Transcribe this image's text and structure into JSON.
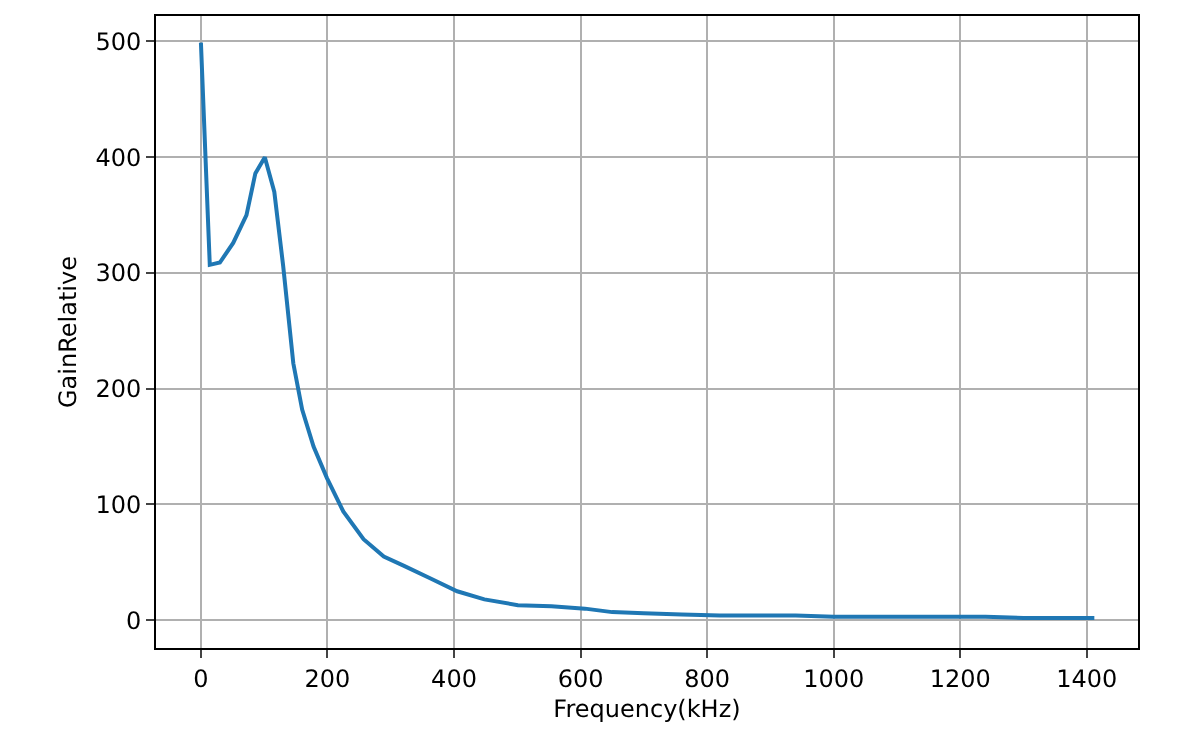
{
  "chart_data": {
    "type": "line",
    "xlabel": "Frequency(kHz)",
    "ylabel": "GainRelative",
    "x": [
      0,
      14,
      30,
      51,
      72,
      86,
      101,
      116,
      130,
      146,
      160,
      178,
      199,
      225,
      257,
      289,
      321,
      363,
      405,
      448,
      501,
      554,
      607,
      650,
      700,
      760,
      820,
      880,
      940,
      1000,
      1060,
      1120,
      1180,
      1240,
      1300,
      1360,
      1412
    ],
    "series": [
      {
        "color": "#1f77b4",
        "values": [
          499,
          307,
          309,
          326,
          350,
          386,
          400,
          370,
          306,
          222,
          182,
          150,
          123,
          94,
          70,
          55,
          47,
          36,
          25,
          18,
          13,
          12,
          10,
          7,
          6,
          5,
          4,
          4,
          4,
          3,
          3,
          3,
          3,
          3,
          2,
          2,
          2
        ]
      }
    ],
    "xlim": [
      -71,
      1481
    ],
    "ylim": [
      -24,
      522
    ],
    "xticks": [
      0,
      200,
      400,
      600,
      800,
      1000,
      1200,
      1400
    ],
    "yticks": [
      0,
      100,
      200,
      300,
      400,
      500
    ],
    "grid": true
  }
}
